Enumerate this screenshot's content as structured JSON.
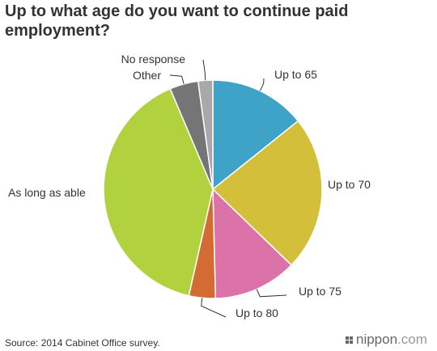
{
  "title": "Up to what age do you want to continue paid employment?",
  "source": "Source: 2014 Cabinet Office survey.",
  "brand": {
    "name": "nippon",
    "suffix": ".com"
  },
  "chart_data": {
    "type": "pie",
    "title": "Up to what age do you want to continue paid employment?",
    "start": "12 o'clock, clockwise",
    "slices": [
      {
        "label": "Up to 65",
        "value": 14.5,
        "color": "#3fa3c7"
      },
      {
        "label": "Up to 70",
        "value": 23.4,
        "color": "#d4bf3a"
      },
      {
        "label": "Up to 75",
        "value": 12.6,
        "color": "#db73a9"
      },
      {
        "label": "Up to 80",
        "value": 4.0,
        "color": "#d26c33"
      },
      {
        "label": "As long as able",
        "value": 40.8,
        "color": "#b2d13e"
      },
      {
        "label": "Other",
        "value": 4.3,
        "color": "#757575"
      },
      {
        "label": "No response",
        "value": 2.2,
        "color": "#a8a8a8"
      }
    ]
  }
}
